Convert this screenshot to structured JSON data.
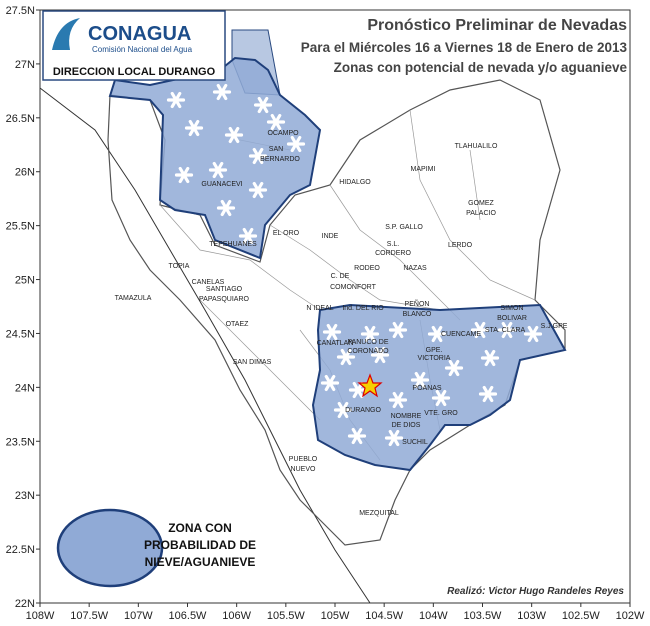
{
  "header": {
    "logo": "CONAGUA",
    "logo_subtitle": "Comisión Nacional del Agua",
    "office": "DIRECCION LOCAL DURANGO"
  },
  "title": {
    "line1": "Pronóstico Preliminar de Nevadas",
    "line2": "Para el  Miércoles 16 a Viernes 18  de Enero de 2013",
    "line3": "Zonas con potencial de nevada y/o aguanieve"
  },
  "lat_ticks": [
    {
      "value": 27.5,
      "label": "27.5N"
    },
    {
      "value": 27,
      "label": "27N"
    },
    {
      "value": 26.5,
      "label": "26.5N"
    },
    {
      "value": 26,
      "label": "26N"
    },
    {
      "value": 25.5,
      "label": "25.5N"
    },
    {
      "value": 25,
      "label": "25N"
    },
    {
      "value": 24.5,
      "label": "24.5N"
    },
    {
      "value": 24,
      "label": "24N"
    },
    {
      "value": 23.5,
      "label": "23.5N"
    },
    {
      "value": 23,
      "label": "23N"
    },
    {
      "value": 22.5,
      "label": "22.5N"
    },
    {
      "value": 22,
      "label": "22N"
    }
  ],
  "lon_ticks": [
    {
      "value": 108,
      "label": "108W"
    },
    {
      "value": 107.5,
      "label": "107.5W"
    },
    {
      "value": 107,
      "label": "107W"
    },
    {
      "value": 106.5,
      "label": "106.5W"
    },
    {
      "value": 106,
      "label": "106W"
    },
    {
      "value": 105.5,
      "label": "105.5W"
    },
    {
      "value": 105,
      "label": "105W"
    },
    {
      "value": 104.5,
      "label": "104.5W"
    },
    {
      "value": 104,
      "label": "104W"
    },
    {
      "value": 103.5,
      "label": "103.5W"
    },
    {
      "value": 103,
      "label": "103W"
    },
    {
      "value": 102.5,
      "label": "102.5W"
    },
    {
      "value": 102,
      "label": "102W"
    }
  ],
  "places": [
    "OCAMPO",
    "SAN",
    "BERNARDO",
    "GUANACEVI",
    "TEPEHUANES",
    "EL ORO",
    "INDE",
    "HIDALGO",
    "MAPIMI",
    "TLAHUALILO",
    "GOMEZ",
    "PALACIO",
    "S.P. GALLO",
    "S.L.",
    "CORDERO",
    "LERDO",
    "RODEO",
    "NAZAS",
    "C. DE",
    "COMONFORT",
    "TOPIA",
    "CANELAS",
    "TAMAZULA",
    "SANTIAGO",
    "PAPASQUIARO",
    "OTAEZ",
    "N IDEAL",
    "Ind. DEL RIO",
    "PEÑON",
    "BLANCO",
    "CUENCAME",
    "SIMON",
    "BOLIVAR",
    "STA. CLARA",
    "S.J.GPE",
    "CANATLAN",
    "PANUCO DE",
    "CORONADO",
    "GPE.",
    "VICTORIA",
    "SAN DIMAS",
    "POANAS",
    "DURANGO",
    "NOMBRE",
    "DE DIOS",
    "VTE. GRO",
    "SUCHIL",
    "PUEBLO",
    "NUEVO",
    "MEZQUITAL"
  ],
  "legend": {
    "lines": [
      "ZONA CON",
      "PROBABILIDAD DE",
      "NIEVE/AGUANIEVE"
    ]
  },
  "credit": "Realizó: Victor Hugo Randeles Reyes"
}
